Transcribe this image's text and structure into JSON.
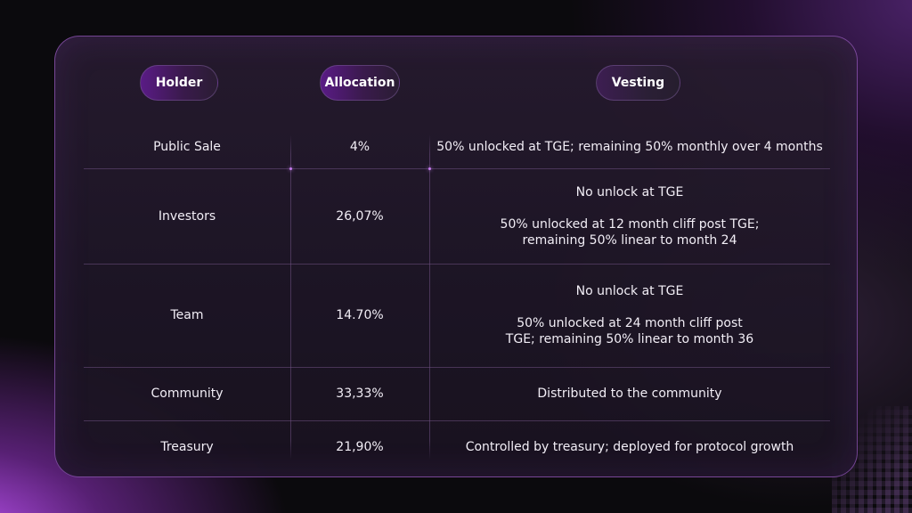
{
  "header": {
    "holder": "Holder",
    "allocation": "Allocation",
    "vesting": "Vesting"
  },
  "rows": [
    {
      "holder": "Public Sale",
      "allocation": "4%",
      "vesting": [
        "50% unlocked at TGE; remaining 50% monthly over 4 months"
      ]
    },
    {
      "holder": "Investors",
      "allocation": "26,07%",
      "vesting_primary": "No unlock at TGE",
      "vesting": [
        "50% unlocked at 12 month cliff post TGE;",
        "remaining 50% linear to month 24"
      ]
    },
    {
      "holder": "Team",
      "allocation": "14.70%",
      "vesting_primary": "No unlock at TGE",
      "vesting": [
        "50% unlocked at 24 month cliff post",
        "TGE; remaining 50% linear to month 36"
      ]
    },
    {
      "holder": "Community",
      "allocation": "33,33%",
      "vesting": [
        "Distributed to the community"
      ]
    },
    {
      "holder": "Treasury",
      "allocation": "21,90%",
      "vesting": [
        "Controlled by treasury; deployed for protocol growth"
      ]
    }
  ],
  "colors": {
    "accent": "#b44ee8",
    "pill": "#5a1b86",
    "card": "#281c30",
    "background": "#0b0a0d"
  }
}
